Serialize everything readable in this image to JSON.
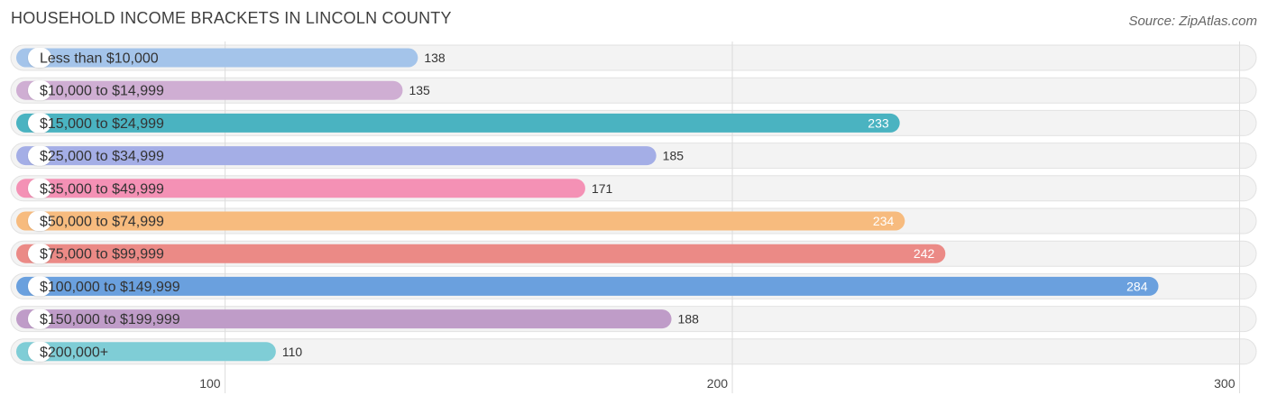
{
  "chart_data": {
    "type": "bar",
    "orientation": "horizontal",
    "title": "HOUSEHOLD INCOME BRACKETS IN LINCOLN COUNTY",
    "source": "Source: ZipAtlas.com",
    "categories": [
      "Less than $10,000",
      "$10,000 to $14,999",
      "$15,000 to $24,999",
      "$25,000 to $34,999",
      "$35,000 to $49,999",
      "$50,000 to $74,999",
      "$75,000 to $99,999",
      "$100,000 to $149,999",
      "$150,000 to $199,999",
      "$200,000+"
    ],
    "values": [
      138,
      135,
      233,
      185,
      171,
      234,
      242,
      284,
      188,
      110
    ],
    "colors": [
      "#a4c4ea",
      "#cfaed3",
      "#4ab3c1",
      "#a4aee6",
      "#f491b5",
      "#f7bb7e",
      "#eb8a86",
      "#6aa0de",
      "#bf9cc8",
      "#7fcdd6"
    ],
    "xticks": [
      100,
      200,
      300
    ],
    "xlim": [
      59,
      304
    ],
    "grid": true
  }
}
